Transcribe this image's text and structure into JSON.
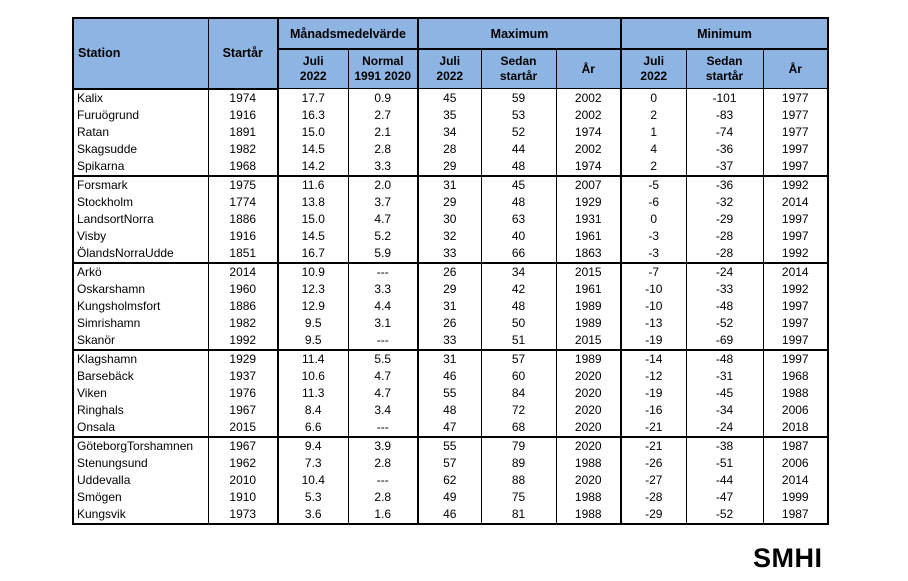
{
  "logo": {
    "text": "SMHI"
  },
  "table": {
    "header": {
      "station": "Station",
      "startar": "Startår",
      "groups": [
        {
          "label": "Månadsmedelvärde",
          "sub": [
            "Juli\n2022",
            "Normal\n1991 2020"
          ]
        },
        {
          "label": "Maximum",
          "sub": [
            "Juli\n2022",
            "Sedan\nstartår",
            "År"
          ]
        },
        {
          "label": "Minimum",
          "sub": [
            "Juli\n2022",
            "Sedan\nstartår",
            "År"
          ]
        }
      ]
    },
    "columns": [
      "Station",
      "Startår",
      "Månadsmedelvärde Juli 2022",
      "Månadsmedelvärde Normal 1991 2020",
      "Maximum Juli 2022",
      "Maximum Sedan startår",
      "Maximum År",
      "Minimum Juli 2022",
      "Minimum Sedan startår",
      "Minimum År"
    ],
    "rows": [
      [
        "Kalix",
        "1974",
        "17.7",
        "0.9",
        "45",
        "59",
        "2002",
        "0",
        "-101",
        "1977"
      ],
      [
        "Furuögrund",
        "1916",
        "16.3",
        "2.7",
        "35",
        "53",
        "2002",
        "2",
        "-83",
        "1977"
      ],
      [
        "Ratan",
        "1891",
        "15.0",
        "2.1",
        "34",
        "52",
        "1974",
        "1",
        "-74",
        "1977"
      ],
      [
        "Skagsudde",
        "1982",
        "14.5",
        "2.8",
        "28",
        "44",
        "2002",
        "4",
        "-36",
        "1997"
      ],
      [
        "Spikarna",
        "1968",
        "14.2",
        "3.3",
        "29",
        "48",
        "1974",
        "2",
        "-37",
        "1997"
      ],
      [
        "Forsmark",
        "1975",
        "11.6",
        "2.0",
        "31",
        "45",
        "2007",
        "-5",
        "-36",
        "1992"
      ],
      [
        "Stockholm",
        "1774",
        "13.8",
        "3.7",
        "29",
        "48",
        "1929",
        "-6",
        "-32",
        "2014"
      ],
      [
        "LandsortNorra",
        "1886",
        "15.0",
        "4.7",
        "30",
        "63",
        "1931",
        "0",
        "-29",
        "1997"
      ],
      [
        "Visby",
        "1916",
        "14.5",
        "5.2",
        "32",
        "40",
        "1961",
        "-3",
        "-28",
        "1997"
      ],
      [
        "ÖlandsNorraUdde",
        "1851",
        "16.7",
        "5.9",
        "33",
        "66",
        "1863",
        "-3",
        "-28",
        "1992"
      ],
      [
        "Arkö",
        "2014",
        "10.9",
        "---",
        "26",
        "34",
        "2015",
        "-7",
        "-24",
        "2014"
      ],
      [
        "Oskarshamn",
        "1960",
        "12.3",
        "3.3",
        "29",
        "42",
        "1961",
        "-10",
        "-33",
        "1992"
      ],
      [
        "Kungsholmsfort",
        "1886",
        "12.9",
        "4.4",
        "31",
        "48",
        "1989",
        "-10",
        "-48",
        "1997"
      ],
      [
        "Simrishamn",
        "1982",
        "9.5",
        "3.1",
        "26",
        "50",
        "1989",
        "-13",
        "-52",
        "1997"
      ],
      [
        "Skanör",
        "1992",
        "9.5",
        "---",
        "33",
        "51",
        "2015",
        "-19",
        "-69",
        "1997"
      ],
      [
        "Klagshamn",
        "1929",
        "11.4",
        "5.5",
        "31",
        "57",
        "1989",
        "-14",
        "-48",
        "1997"
      ],
      [
        "Barsebäck",
        "1937",
        "10.6",
        "4.7",
        "46",
        "60",
        "2020",
        "-12",
        "-31",
        "1968"
      ],
      [
        "Viken",
        "1976",
        "11.3",
        "4.7",
        "55",
        "84",
        "2020",
        "-19",
        "-45",
        "1988"
      ],
      [
        "Ringhals",
        "1967",
        "8.4",
        "3.4",
        "48",
        "72",
        "2020",
        "-16",
        "-34",
        "2006"
      ],
      [
        "Onsala",
        "2015",
        "6.6",
        "---",
        "47",
        "68",
        "2020",
        "-21",
        "-24",
        "2018"
      ],
      [
        "GöteborgTorshamnen",
        "1967",
        "9.4",
        "3.9",
        "55",
        "79",
        "2020",
        "-21",
        "-38",
        "1987"
      ],
      [
        "Stenungsund",
        "1962",
        "7.3",
        "2.8",
        "57",
        "89",
        "1988",
        "-26",
        "-51",
        "2006"
      ],
      [
        "Uddevalla",
        "2010",
        "10.4",
        "---",
        "62",
        "88",
        "2020",
        "-27",
        "-44",
        "2014"
      ],
      [
        "Smögen",
        "1910",
        "5.3",
        "2.8",
        "49",
        "75",
        "1988",
        "-28",
        "-47",
        "1999"
      ],
      [
        "Kungsvik",
        "1973",
        "3.6",
        "1.6",
        "46",
        "81",
        "1988",
        "-29",
        "-52",
        "1987"
      ]
    ],
    "group_size": 5
  }
}
